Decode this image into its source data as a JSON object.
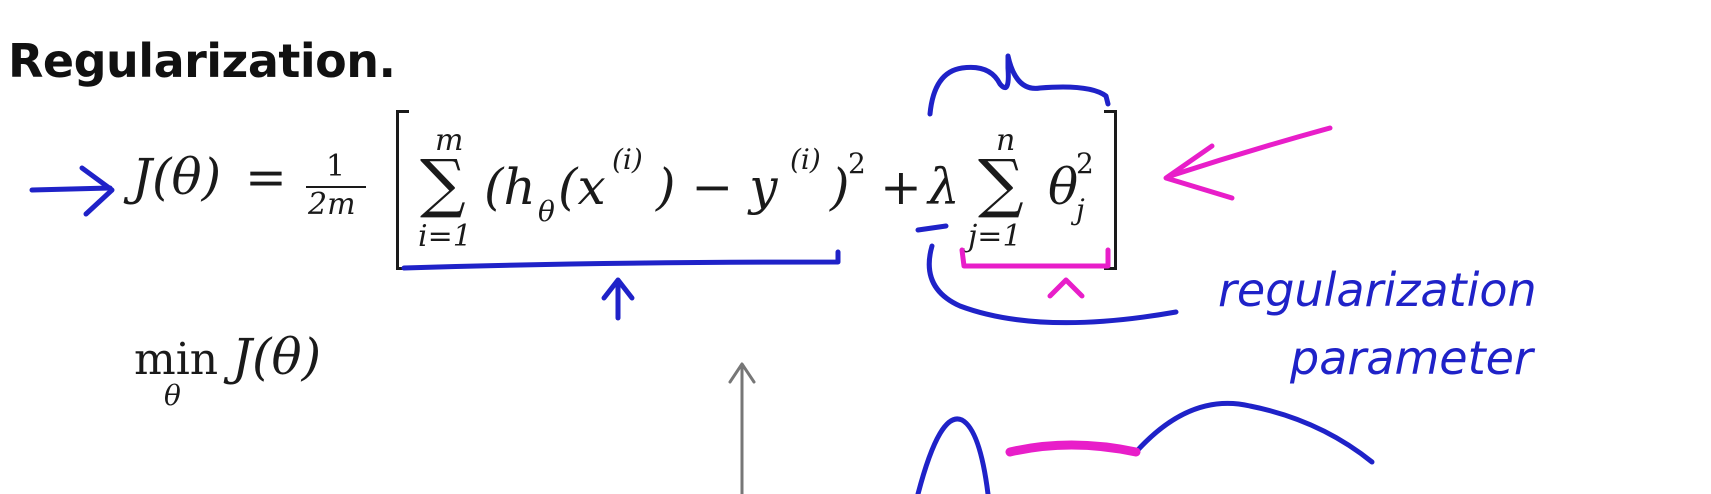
{
  "title": "Regularization.",
  "equation": {
    "lhs": "J(θ)",
    "equals": "=",
    "frac_num": "1",
    "frac_den": "2m",
    "sum1_top": "m",
    "sum1_bottom": "i=1",
    "sum1_body_a": "(h",
    "sum1_body_sub": "θ",
    "sum1_body_b": "(x",
    "sup_i": "(i)",
    "sum1_body_c": ") − y",
    "sum1_body_d": ")",
    "sq": "2",
    "plus": "+",
    "lambda": "λ",
    "sum2_top": "n",
    "sum2_bottom": "j=1",
    "theta": "θ",
    "theta_sub": "j",
    "theta_sup": "2"
  },
  "minimize": {
    "op": "min",
    "under": "θ",
    "expr": "J(θ)"
  },
  "annotations": {
    "line1": "regularization",
    "line2": "parameter"
  }
}
